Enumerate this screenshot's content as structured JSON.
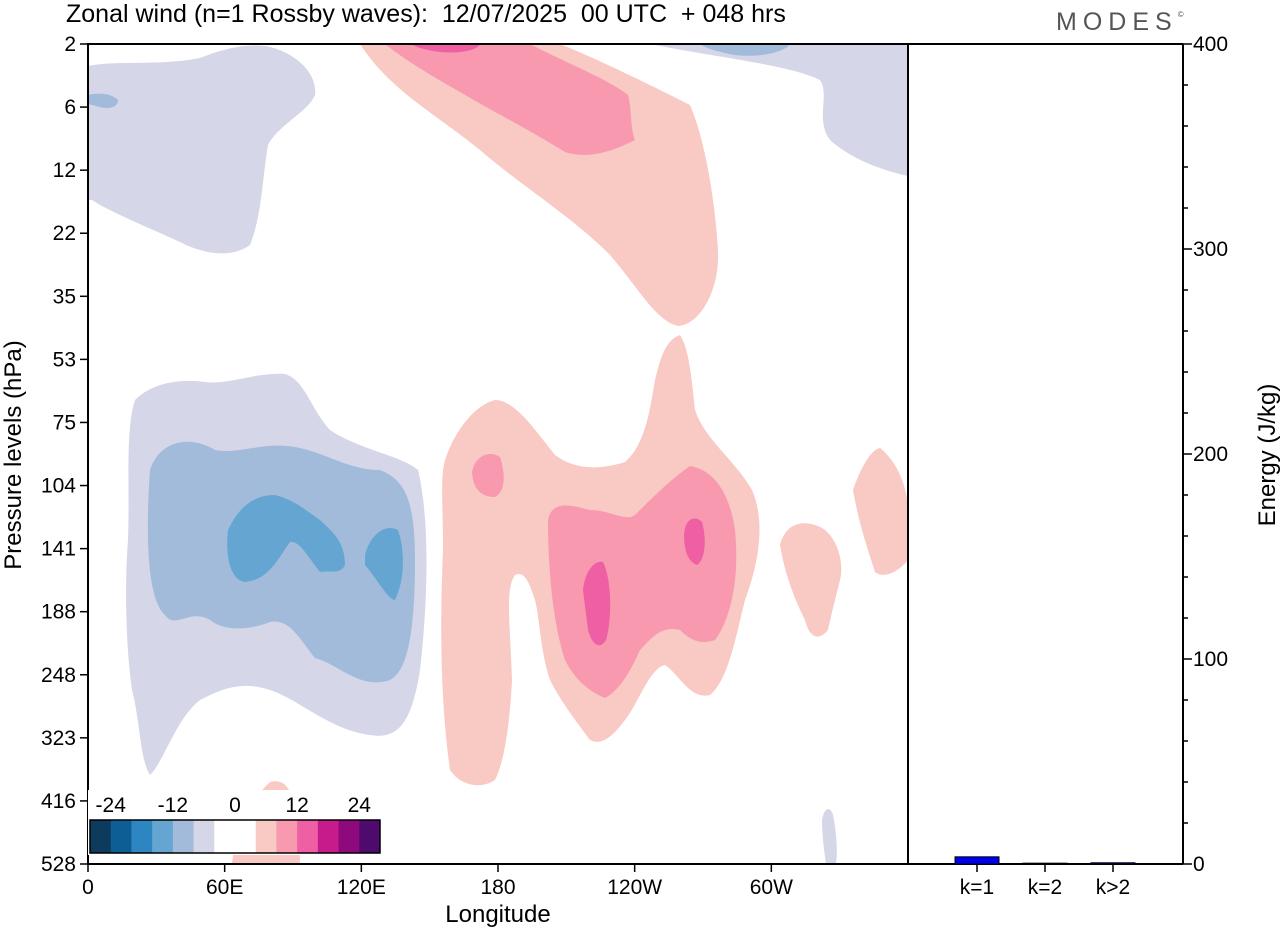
{
  "title": "Zonal wind (n=1 Rossby waves):  12/07/2025  00 UTC  + 048 hrs",
  "logo": "MODES",
  "logo_mark": "©",
  "chart_data": [
    {
      "type": "heatmap",
      "title": "Zonal wind (n=1 Rossby waves):  12/07/2025  00 UTC  + 048 hrs",
      "xlabel": "Longitude",
      "ylabel": "Pressure levels (hPa)",
      "x_ticks": [
        "0",
        "60E",
        "120E",
        "180",
        "120W",
        "60W"
      ],
      "x_tick_values": [
        0,
        60,
        120,
        180,
        240,
        300
      ],
      "xlim": [
        0,
        360
      ],
      "y_ticks": [
        "2",
        "6",
        "12",
        "22",
        "35",
        "53",
        "75",
        "104",
        "141",
        "188",
        "248",
        "323",
        "416",
        "528"
      ],
      "y_scale": "model levels (top to bottom)",
      "colorbar": {
        "labels": [
          "-24",
          "-12",
          "0",
          "12",
          "24"
        ],
        "label_values": [
          -24,
          -12,
          0,
          12,
          24
        ],
        "levels": [
          -28,
          -24,
          -20,
          -16,
          -12,
          -8,
          -4,
          0,
          4,
          8,
          12,
          16,
          20,
          24,
          28
        ],
        "colors": [
          "#0d3b5e",
          "#0e5e96",
          "#2d86c1",
          "#65a5d1",
          "#a2bbdb",
          "#d5d6e8",
          "#ffffff",
          "#ffffff",
          "#f9c9c4",
          "#f899b0",
          "#ee5fa4",
          "#c61b8a",
          "#8e0a7c",
          "#4f0a6e"
        ]
      },
      "features": [
        {
          "sign": "negative",
          "max_abs": 12,
          "lon_range": [
            15,
            140
          ],
          "level_range": [
            "75",
            "323"
          ]
        },
        {
          "sign": "positive",
          "max_abs": 16,
          "lon_range": [
            155,
            300
          ],
          "level_range": [
            "53",
            "416"
          ]
        },
        {
          "sign": "negative",
          "max_abs": 4,
          "lon_range": [
            0,
            100
          ],
          "level_range": [
            "2",
            "22"
          ]
        },
        {
          "sign": "positive",
          "max_abs": 12,
          "lon_range": [
            115,
            240
          ],
          "level_range": [
            "2",
            "35"
          ]
        }
      ]
    },
    {
      "type": "bar",
      "categories": [
        "k=1",
        "k=2",
        "k>2"
      ],
      "values": [
        3.5,
        0.4,
        0.6
      ],
      "ylabel": "Energy (J/kg)",
      "ylim": [
        0,
        400
      ],
      "y_ticks": [
        0,
        100,
        200,
        300,
        400
      ],
      "colors": [
        "#0000ee",
        "#0000ee",
        "#0000ee"
      ]
    }
  ]
}
